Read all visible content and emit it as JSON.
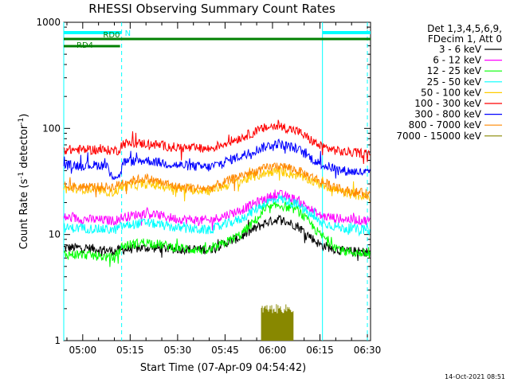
{
  "chart_data": {
    "type": "line",
    "title": "RHESSI Observing Summary Count Rates",
    "xlabel": "Start Time (07-Apr-09 04:54:42)",
    "ylabel_main": "Count Rate (s",
    "ylabel_sup1": "-1",
    "ylabel_mid": " detector",
    "ylabel_sup2": "-1",
    "ylabel_end": ")",
    "yscale": "log",
    "ylim": [
      1,
      1000
    ],
    "xlim_minutes": [
      -6,
      91
    ],
    "x_ticks": [
      {
        "label": "05:00",
        "t": 0
      },
      {
        "label": "05:15",
        "t": 15
      },
      {
        "label": "05:30",
        "t": 30
      },
      {
        "label": "05:45",
        "t": 45
      },
      {
        "label": "06:00",
        "t": 60
      },
      {
        "label": "06:15",
        "t": 75
      },
      {
        "label": "06:30",
        "t": 90
      }
    ],
    "y_ticks": [
      {
        "label": "1",
        "v": 1
      },
      {
        "label": "10",
        "v": 10
      },
      {
        "label": "100",
        "v": 100
      },
      {
        "label": "1000",
        "v": 1000
      }
    ],
    "legend_header": [
      "Det 1,3,4,5,6,9,",
      "FDecim 1, Att 0"
    ],
    "series": [
      {
        "name": "3 - 6 keV",
        "color": "#000000",
        "points": [
          [
            -6,
            7.5
          ],
          [
            0,
            7.5
          ],
          [
            10,
            7
          ],
          [
            12.5,
            7.2
          ],
          [
            20,
            7.5
          ],
          [
            30,
            7.3
          ],
          [
            40,
            7.2
          ],
          [
            50,
            9.5
          ],
          [
            58,
            13
          ],
          [
            62,
            14
          ],
          [
            68,
            12
          ],
          [
            75,
            8
          ],
          [
            82,
            7
          ],
          [
            91,
            6.8
          ]
        ]
      },
      {
        "name": "6 - 12 keV",
        "color": "#ff00ff",
        "points": [
          [
            -6,
            14.5
          ],
          [
            0,
            14
          ],
          [
            10,
            13.5
          ],
          [
            12.5,
            14.5
          ],
          [
            20,
            16
          ],
          [
            30,
            14
          ],
          [
            40,
            13.5
          ],
          [
            50,
            17
          ],
          [
            58,
            22
          ],
          [
            62,
            24
          ],
          [
            68,
            21
          ],
          [
            75,
            15
          ],
          [
            82,
            14
          ],
          [
            91,
            13.5
          ]
        ]
      },
      {
        "name": "12 - 25 keV",
        "color": "#00ff00",
        "points": [
          [
            -6,
            6.5
          ],
          [
            0,
            6.5
          ],
          [
            10,
            6
          ],
          [
            12.5,
            7.8
          ],
          [
            20,
            8.5
          ],
          [
            30,
            7.5
          ],
          [
            40,
            7
          ],
          [
            50,
            10
          ],
          [
            58,
            17
          ],
          [
            62,
            19
          ],
          [
            68,
            17
          ],
          [
            75,
            10
          ],
          [
            82,
            7
          ],
          [
            91,
            6.5
          ]
        ]
      },
      {
        "name": "25 - 50 keV",
        "color": "#00ffff",
        "points": [
          [
            -6,
            11.5
          ],
          [
            0,
            11.5
          ],
          [
            10,
            11
          ],
          [
            12.5,
            12
          ],
          [
            20,
            13
          ],
          [
            30,
            11.5
          ],
          [
            40,
            11
          ],
          [
            50,
            14
          ],
          [
            58,
            20
          ],
          [
            62,
            22
          ],
          [
            68,
            19
          ],
          [
            75,
            13
          ],
          [
            82,
            11.5
          ],
          [
            91,
            11
          ]
        ]
      },
      {
        "name": "50 - 100 keV",
        "color": "#ffcc00",
        "points": [
          [
            -6,
            27
          ],
          [
            0,
            27
          ],
          [
            10,
            25
          ],
          [
            12.5,
            28
          ],
          [
            20,
            30
          ],
          [
            30,
            27
          ],
          [
            40,
            26
          ],
          [
            50,
            32
          ],
          [
            58,
            38
          ],
          [
            62,
            40
          ],
          [
            68,
            36
          ],
          [
            75,
            30
          ],
          [
            82,
            25
          ],
          [
            91,
            22
          ]
        ]
      },
      {
        "name": "100 - 300 keV",
        "color": "#ff0000",
        "points": [
          [
            -6,
            63
          ],
          [
            0,
            63
          ],
          [
            10,
            62
          ],
          [
            11.5,
            62
          ],
          [
            12.5,
            72
          ],
          [
            20,
            72
          ],
          [
            30,
            66
          ],
          [
            40,
            64
          ],
          [
            50,
            82
          ],
          [
            58,
            102
          ],
          [
            62,
            106
          ],
          [
            68,
            94
          ],
          [
            75,
            68
          ],
          [
            82,
            60
          ],
          [
            91,
            58
          ]
        ]
      },
      {
        "name": "300 - 800 keV",
        "color": "#0000ff",
        "points": [
          [
            -6,
            45
          ],
          [
            0,
            45
          ],
          [
            8,
            45
          ],
          [
            8.5,
            36
          ],
          [
            12,
            36
          ],
          [
            12.5,
            48
          ],
          [
            20,
            50
          ],
          [
            30,
            45
          ],
          [
            40,
            43
          ],
          [
            50,
            55
          ],
          [
            58,
            68
          ],
          [
            62,
            72
          ],
          [
            68,
            64
          ],
          [
            75,
            46
          ],
          [
            82,
            40
          ],
          [
            91,
            38
          ]
        ]
      },
      {
        "name": "800 - 7000 keV",
        "color": "#ff8800",
        "points": [
          [
            -6,
            28
          ],
          [
            0,
            28
          ],
          [
            10,
            28
          ],
          [
            12.5,
            31
          ],
          [
            20,
            34
          ],
          [
            30,
            28
          ],
          [
            40,
            27
          ],
          [
            50,
            36
          ],
          [
            58,
            42
          ],
          [
            62,
            45
          ],
          [
            68,
            40
          ],
          [
            75,
            32
          ],
          [
            82,
            26
          ],
          [
            91,
            24
          ]
        ]
      },
      {
        "name": "7000 - 15000 keV",
        "color": "#888800",
        "points": []
      }
    ],
    "burst": {
      "t_start": 56.5,
      "t_end": 66.5,
      "v_low": 1,
      "v_high": 2.0,
      "color": "#888800"
    },
    "vertical_lines": [
      {
        "t": -6,
        "style": "solid",
        "color": "#00ffff"
      },
      {
        "t": 12.3,
        "style": "dashed",
        "color": "#00ffff"
      },
      {
        "t": 75.8,
        "style": "solid",
        "color": "#00ffff"
      },
      {
        "t": 90,
        "style": "dashed",
        "color": "#00ffff"
      }
    ],
    "annotations": [
      {
        "label": "N",
        "t_start": -6,
        "t_end": 12.3,
        "color": "#00ffff",
        "row": 1
      },
      {
        "label": "",
        "t_start": 75.8,
        "t_end": 91,
        "color": "#00ffff",
        "row": 1
      },
      {
        "label": "RD0",
        "t_start": -6,
        "t_end": 91,
        "color": "#008000",
        "row": 2
      },
      {
        "label": "RD4",
        "t_start": -6,
        "t_end": 11.8,
        "color": "#008000",
        "row": 3
      }
    ]
  },
  "footer_timestamp": "14-Oct-2021 08:51"
}
